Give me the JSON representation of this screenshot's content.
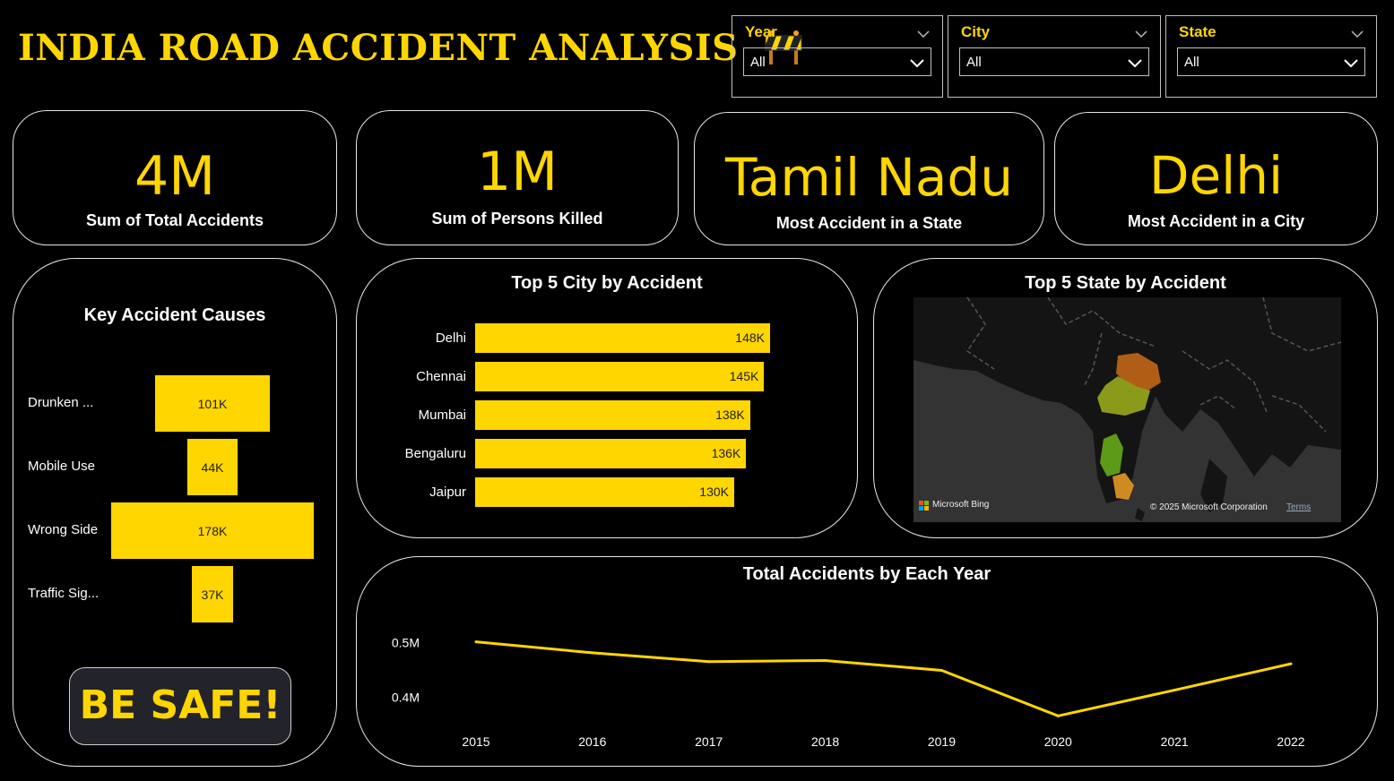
{
  "header": {
    "title": "INDIA ROAD ACCIDENT ANALYSIS",
    "icon": "construction-barrier-icon"
  },
  "filters": [
    {
      "label": "Year",
      "value": "All"
    },
    {
      "label": "City",
      "value": "All"
    },
    {
      "label": "State",
      "value": "All"
    }
  ],
  "kpis": [
    {
      "value": "4M",
      "label": "Sum of Total Accidents"
    },
    {
      "value": "1M",
      "label": "Sum of Persons Killed"
    },
    {
      "value": "Tamil Nadu",
      "label": "Most Accident in a State"
    },
    {
      "value": "Delhi",
      "label": "Most Accident in a City"
    }
  ],
  "causes": {
    "title": "Key Accident Causes",
    "items": [
      {
        "label": "Drunken ...",
        "value": 101,
        "display": "101K"
      },
      {
        "label": "Mobile Use",
        "value": 44,
        "display": "44K"
      },
      {
        "label": "Wrong Side",
        "value": 178,
        "display": "178K"
      },
      {
        "label": "Traffic Sig...",
        "value": 37,
        "display": "37K"
      }
    ]
  },
  "cities": {
    "title": "Top 5 City by Accident",
    "items": [
      {
        "label": "Delhi",
        "value": 148,
        "display": "148K"
      },
      {
        "label": "Chennai",
        "value": 145,
        "display": "145K"
      },
      {
        "label": "Mumbai",
        "value": 138,
        "display": "138K"
      },
      {
        "label": "Bengaluru",
        "value": 136,
        "display": "136K"
      },
      {
        "label": "Jaipur",
        "value": 130,
        "display": "130K"
      }
    ]
  },
  "map": {
    "title": "Top 5 State by Accident",
    "attribution": "© 2025 Microsoft Corporation",
    "terms": "Terms",
    "provider": "Microsoft Bing"
  },
  "yearly": {
    "title": "Total Accidents by Each Year"
  },
  "chart_data": {
    "type": "line",
    "title": "Total Accidents by Each Year",
    "x": [
      "2015",
      "2016",
      "2017",
      "2018",
      "2019",
      "2020",
      "2021",
      "2022"
    ],
    "series": [
      {
        "values": [
          0.501,
          0.481,
          0.465,
          0.467,
          0.449,
          0.366,
          0.413,
          0.461
        ]
      }
    ],
    "yticks": [
      "0.4M",
      "0.5M"
    ],
    "ylim": [
      0.36,
      0.52
    ],
    "color": "#FFD600"
  },
  "safety": {
    "message": "BE SAFE!"
  },
  "colors": {
    "accent": "#FFD600",
    "background": "#000000"
  }
}
